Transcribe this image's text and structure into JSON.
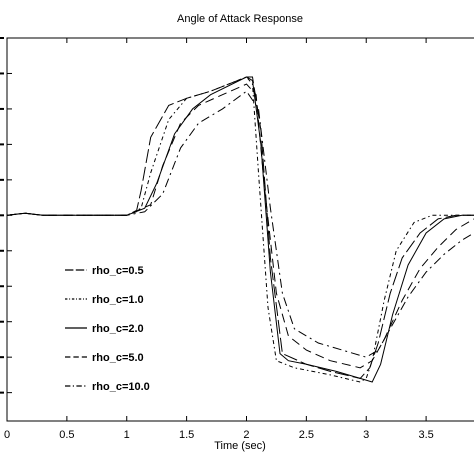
{
  "chart_data": {
    "type": "line",
    "title": "Angle of Attack Response",
    "xlabel": "Time (sec)",
    "ylabel": "",
    "xlim": [
      0,
      3.9
    ],
    "ylim": [
      -2.9,
      2.5
    ],
    "xticks": [
      "0",
      "0.5",
      "1",
      "1.5",
      "2",
      "2.5",
      "3",
      "3.5"
    ],
    "grid": false,
    "legend": "inside-left",
    "series": [
      {
        "name": "rho_c=0.5",
        "dash": "long-dash",
        "x": [
          0,
          0.15,
          0.3,
          0.5,
          1.0,
          1.08,
          1.12,
          1.2,
          1.35,
          1.5,
          1.7,
          2.0,
          2.05,
          2.12,
          2.2,
          2.3,
          2.5,
          2.7,
          2.95,
          3.03,
          3.1,
          3.2,
          3.3,
          3.45,
          3.6,
          3.75,
          3.9
        ],
        "y": [
          0.0,
          0.03,
          0.0,
          0.0,
          0.0,
          0.05,
          0.35,
          1.1,
          1.55,
          1.65,
          1.75,
          1.95,
          1.95,
          1.2,
          -0.6,
          -1.95,
          -2.1,
          -2.2,
          -2.3,
          -2.15,
          -1.8,
          -1.1,
          -0.6,
          -0.25,
          -0.05,
          0.0,
          0.0
        ]
      },
      {
        "name": "rho_c=1.0",
        "dash": "dash-dot-short",
        "x": [
          0,
          0.15,
          0.3,
          0.5,
          1.0,
          1.12,
          1.2,
          1.35,
          1.5,
          1.7,
          2.0,
          2.05,
          2.1,
          2.18,
          2.25,
          2.4,
          2.7,
          2.95,
          3.0,
          3.05,
          3.15,
          3.25,
          3.4,
          3.55,
          3.7,
          3.9
        ],
        "y": [
          0.0,
          0.03,
          0.0,
          0.0,
          0.0,
          0.1,
          0.6,
          1.35,
          1.65,
          1.75,
          1.95,
          1.85,
          0.6,
          -1.3,
          -2.05,
          -2.15,
          -2.25,
          -2.35,
          -2.3,
          -2.05,
          -1.2,
          -0.5,
          -0.1,
          0.0,
          0.0,
          0.0
        ]
      },
      {
        "name": "rho_c=2.0",
        "dash": "solid",
        "x": [
          0,
          0.15,
          0.3,
          0.5,
          1.0,
          1.15,
          1.25,
          1.4,
          1.55,
          1.7,
          2.0,
          2.05,
          2.12,
          2.2,
          2.28,
          2.35,
          2.5,
          2.75,
          2.95,
          3.05,
          3.12,
          3.22,
          3.35,
          3.5,
          3.65,
          3.8,
          3.9
        ],
        "y": [
          0.0,
          0.03,
          0.0,
          0.0,
          0.0,
          0.1,
          0.45,
          1.15,
          1.5,
          1.7,
          1.95,
          1.9,
          1.0,
          -0.8,
          -1.95,
          -2.05,
          -2.1,
          -2.2,
          -2.3,
          -2.35,
          -2.1,
          -1.4,
          -0.7,
          -0.25,
          -0.05,
          0.0,
          0.0
        ]
      },
      {
        "name": "rho_c=5.0",
        "dash": "dashed",
        "x": [
          0,
          0.15,
          0.3,
          0.5,
          1.0,
          1.2,
          1.3,
          1.45,
          1.6,
          1.8,
          2.0,
          2.08,
          2.15,
          2.25,
          2.35,
          2.5,
          2.7,
          2.95,
          3.05,
          3.15,
          3.3,
          3.45,
          3.6,
          3.75,
          3.9
        ],
        "y": [
          0.0,
          0.03,
          0.0,
          0.0,
          0.0,
          0.15,
          0.7,
          1.3,
          1.55,
          1.7,
          1.85,
          1.7,
          0.4,
          -1.1,
          -1.7,
          -1.9,
          -2.05,
          -2.15,
          -2.05,
          -1.75,
          -1.2,
          -0.75,
          -0.45,
          -0.2,
          -0.05
        ]
      },
      {
        "name": "rho_c=10.0",
        "dash": "dash-dot",
        "x": [
          0,
          0.15,
          0.3,
          0.5,
          1.0,
          1.15,
          1.3,
          1.45,
          1.6,
          1.8,
          2.0,
          2.1,
          2.2,
          2.3,
          2.4,
          2.6,
          2.8,
          3.0,
          3.1,
          3.2,
          3.35,
          3.5,
          3.65,
          3.8,
          3.9
        ],
        "y": [
          0.0,
          0.03,
          0.0,
          0.0,
          0.0,
          0.05,
          0.3,
          0.95,
          1.3,
          1.5,
          1.75,
          1.5,
          0.1,
          -1.1,
          -1.6,
          -1.8,
          -1.9,
          -2.0,
          -1.9,
          -1.6,
          -1.15,
          -0.8,
          -0.55,
          -0.35,
          -0.25
        ]
      }
    ]
  }
}
